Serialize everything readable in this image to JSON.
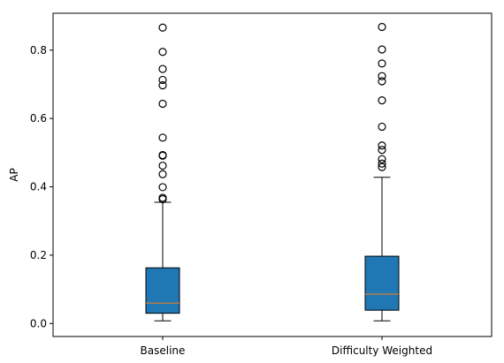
{
  "chart_data": {
    "type": "boxplot",
    "title": "",
    "xlabel": "",
    "ylabel": "AP",
    "ylim": [
      -0.038,
      0.908
    ],
    "yticks": [
      {
        "value": 0.0,
        "label": "0.0"
      },
      {
        "value": 0.2,
        "label": "0.2"
      },
      {
        "value": 0.4,
        "label": "0.4"
      },
      {
        "value": 0.6,
        "label": "0.6"
      },
      {
        "value": 0.8,
        "label": "0.8"
      }
    ],
    "grid": false,
    "colors": {
      "box_fill": "#1f77b4",
      "median": "#ff7f0e",
      "lines": "#000000",
      "axes": "#000000"
    },
    "boxes": [
      {
        "category": "Baseline",
        "whisker_low": 0.008,
        "q1": 0.03,
        "median": 0.06,
        "q3": 0.163,
        "whisker_high": 0.355,
        "outliers": [
          0.866,
          0.795,
          0.745,
          0.713,
          0.697,
          0.643,
          0.544,
          0.493,
          0.491,
          0.462,
          0.437,
          0.399,
          0.368,
          0.364
        ]
      },
      {
        "category": "Difficulty Weighted",
        "whisker_low": 0.008,
        "q1": 0.039,
        "median": 0.086,
        "q3": 0.197,
        "whisker_high": 0.428,
        "outliers": [
          0.868,
          0.802,
          0.761,
          0.724,
          0.709,
          0.653,
          0.576,
          0.521,
          0.508,
          0.481,
          0.468,
          0.458
        ]
      }
    ]
  }
}
